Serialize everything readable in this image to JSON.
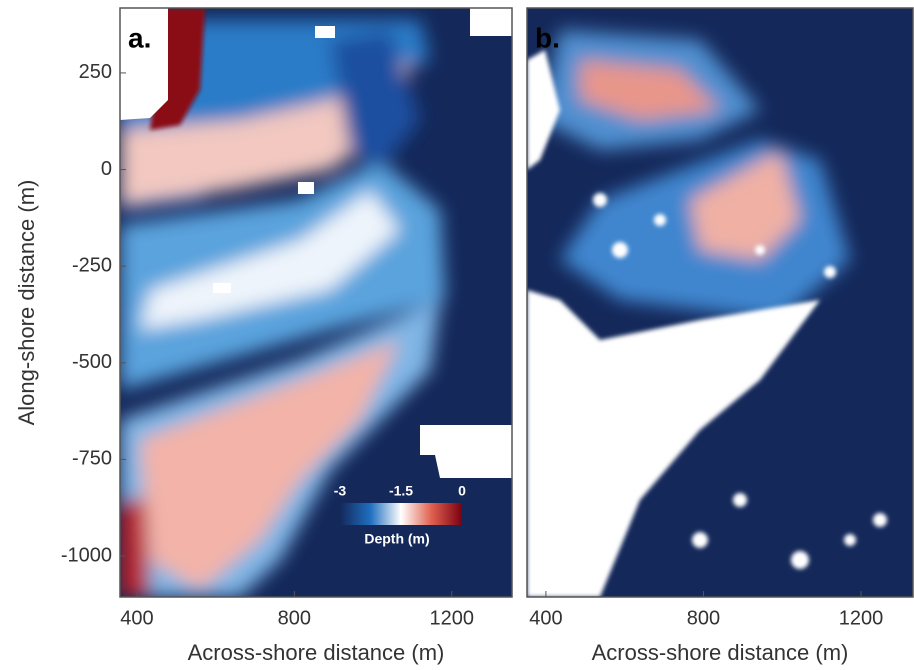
{
  "chart_data": [
    {
      "type": "heatmap",
      "title": "a.",
      "xlabel": "Across-shore distance (m)",
      "ylabel": "Along-shore distance (m)",
      "xlim": [
        357,
        1353
      ],
      "ylim": [
        -1106,
        418
      ],
      "xticks": [
        400,
        800,
        1200
      ],
      "yticks": [
        250,
        0,
        -250,
        -500,
        -750,
        -1000
      ],
      "colorbar": {
        "label": "Depth (m)",
        "lim": [
          -3,
          0
        ],
        "ticks": [
          -3,
          -1.5,
          0
        ],
        "colors": [
          "#14285a",
          "#1f6fc0",
          "#ffffff",
          "#e0604e",
          "#7a0010"
        ]
      }
    },
    {
      "type": "heatmap",
      "title": "b.",
      "xlabel": "Across-shore distance (m)",
      "xlim": [
        352,
        1332
      ],
      "ylim": [
        -1106,
        418
      ],
      "xticks": [
        400,
        800,
        1200
      ]
    }
  ]
}
